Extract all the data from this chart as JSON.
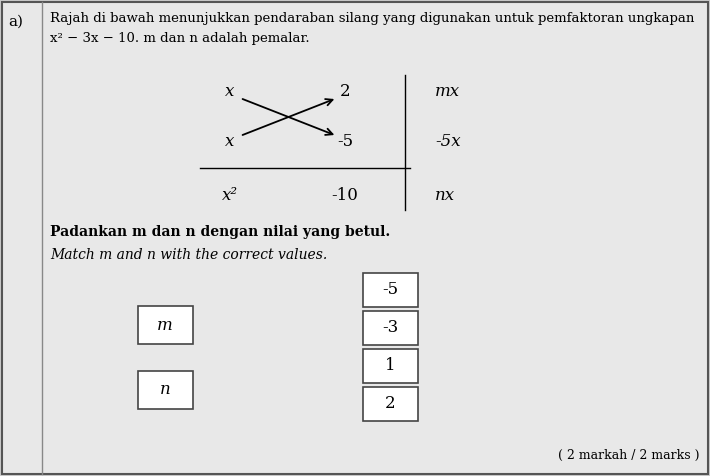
{
  "title_line1": "Rajah di bawah menunjukkan pendaraban silang yang digunakan untuk pemfaktoran ungkapan",
  "title_line2": "x² − 3x − 10. m dan n adalah pemalar.",
  "bg_color": "#cccccc",
  "paper_color": "#e8e8e8",
  "label_a": "a)",
  "padankan_text": "Padankan m dan n dengan nilai yang betul.",
  "match_text": "Match m and n with the correct values.",
  "left_boxes": [
    "m",
    "n"
  ],
  "right_boxes": [
    "-5",
    "-3",
    "1",
    "2"
  ],
  "marks_text": "( 2 markah / 2 marks )"
}
